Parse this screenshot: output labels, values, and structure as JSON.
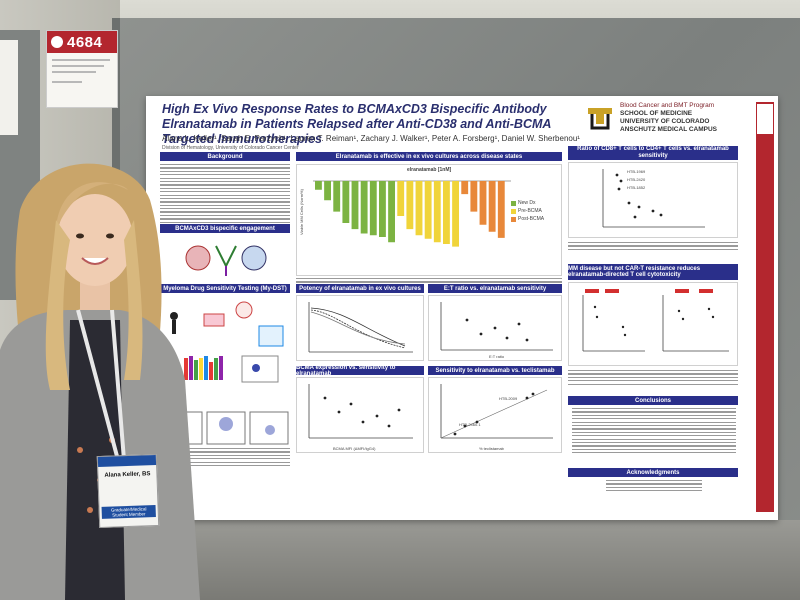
{
  "number_card": {
    "number": "4684"
  },
  "poster": {
    "title": "High Ex Vivo Response Rates to BCMAxCD3 Bispecific Antibody Elranatamab in Patients Relapsed after Anti-CD38 and Anti-BCMA Targeted Immunotherapies",
    "authors": "Alana L. Keller¹, Sarah E. Parzych¹, Lauren T. Reiman¹, Zachary J. Walker¹, Peter A. Forsberg¹, Daniel W. Sherbenou¹",
    "affiliation": "Division of Hematology, University of Colorado Cancer Center",
    "institution": {
      "program": "Blood Cancer and BMT Program",
      "school": "SCHOOL OF MEDICINE",
      "university": "UNIVERSITY OF COLORADO",
      "campus": "ANSCHUTZ MEDICAL CAMPUS"
    },
    "sections": {
      "background": "Background",
      "bcmaxcd3": "BCMAxCD3 bispecific engagement",
      "mydst": "Myeloma Drug Sensitivity Testing (My-DST)",
      "disease_states": "Elranatamab is effective in ex vivo cultures across disease states",
      "drug_label": "elranatamab [1nM]",
      "ratio": "Ratio of CD8+ T cells to CD4+ T cells vs. elranatamab sensitivity",
      "potency": "Potency of elranatamab in ex vivo cultures",
      "et_ratio": "E:T ratio vs. elranatamab sensitivity",
      "mm_disease": "MM disease but not CAR-T resistance reduces elranatamab-directed T cell cytotoxicity",
      "bcma_expr": "BCMA expression vs. sensitivity to elranatamab",
      "teclistamab": "Sensitivity to elranatamab vs. teclistamab",
      "conclusions": "Conclusions",
      "acknowledgments": "Acknowledgments"
    },
    "legend": [
      "New Dx",
      "Pre-BCMA",
      "Post-BCMA"
    ],
    "legend_colors": [
      "#7cb342",
      "#f0d43a",
      "#e8883a"
    ],
    "axis_labels": {
      "viable_mm": "Viable MM Cells (Norm%)",
      "et_ratio": "E:T ratio",
      "bcma_mfi": "BCMA MFI (ΔMFI/IgG4)",
      "tec": "% teclistamab"
    },
    "point_labels": [
      "HTB-1969",
      "HTB-2420",
      "HTB-1852",
      "HTB-2009",
      "HTB-2460.1",
      "HTB-2509"
    ]
  },
  "badge": {
    "name": "Alana Keller, BS",
    "role": "Graduate/Medical Student Member"
  },
  "chart_data": {
    "type": "bar",
    "title": "elranatamab [1nM]",
    "ylabel": "Viable MM Cells (Norm%)",
    "series": [
      {
        "name": "New Dx",
        "values": [
          -10,
          -22,
          -35,
          -48,
          -55,
          -60,
          -62,
          -64,
          -70
        ]
      },
      {
        "name": "Pre-BCMA",
        "values": [
          -40,
          -55,
          -62,
          -66,
          -70,
          -72,
          -75
        ]
      },
      {
        "name": "Post-BCMA",
        "values": [
          -15,
          -35,
          -50,
          -58,
          -65
        ]
      }
    ]
  }
}
